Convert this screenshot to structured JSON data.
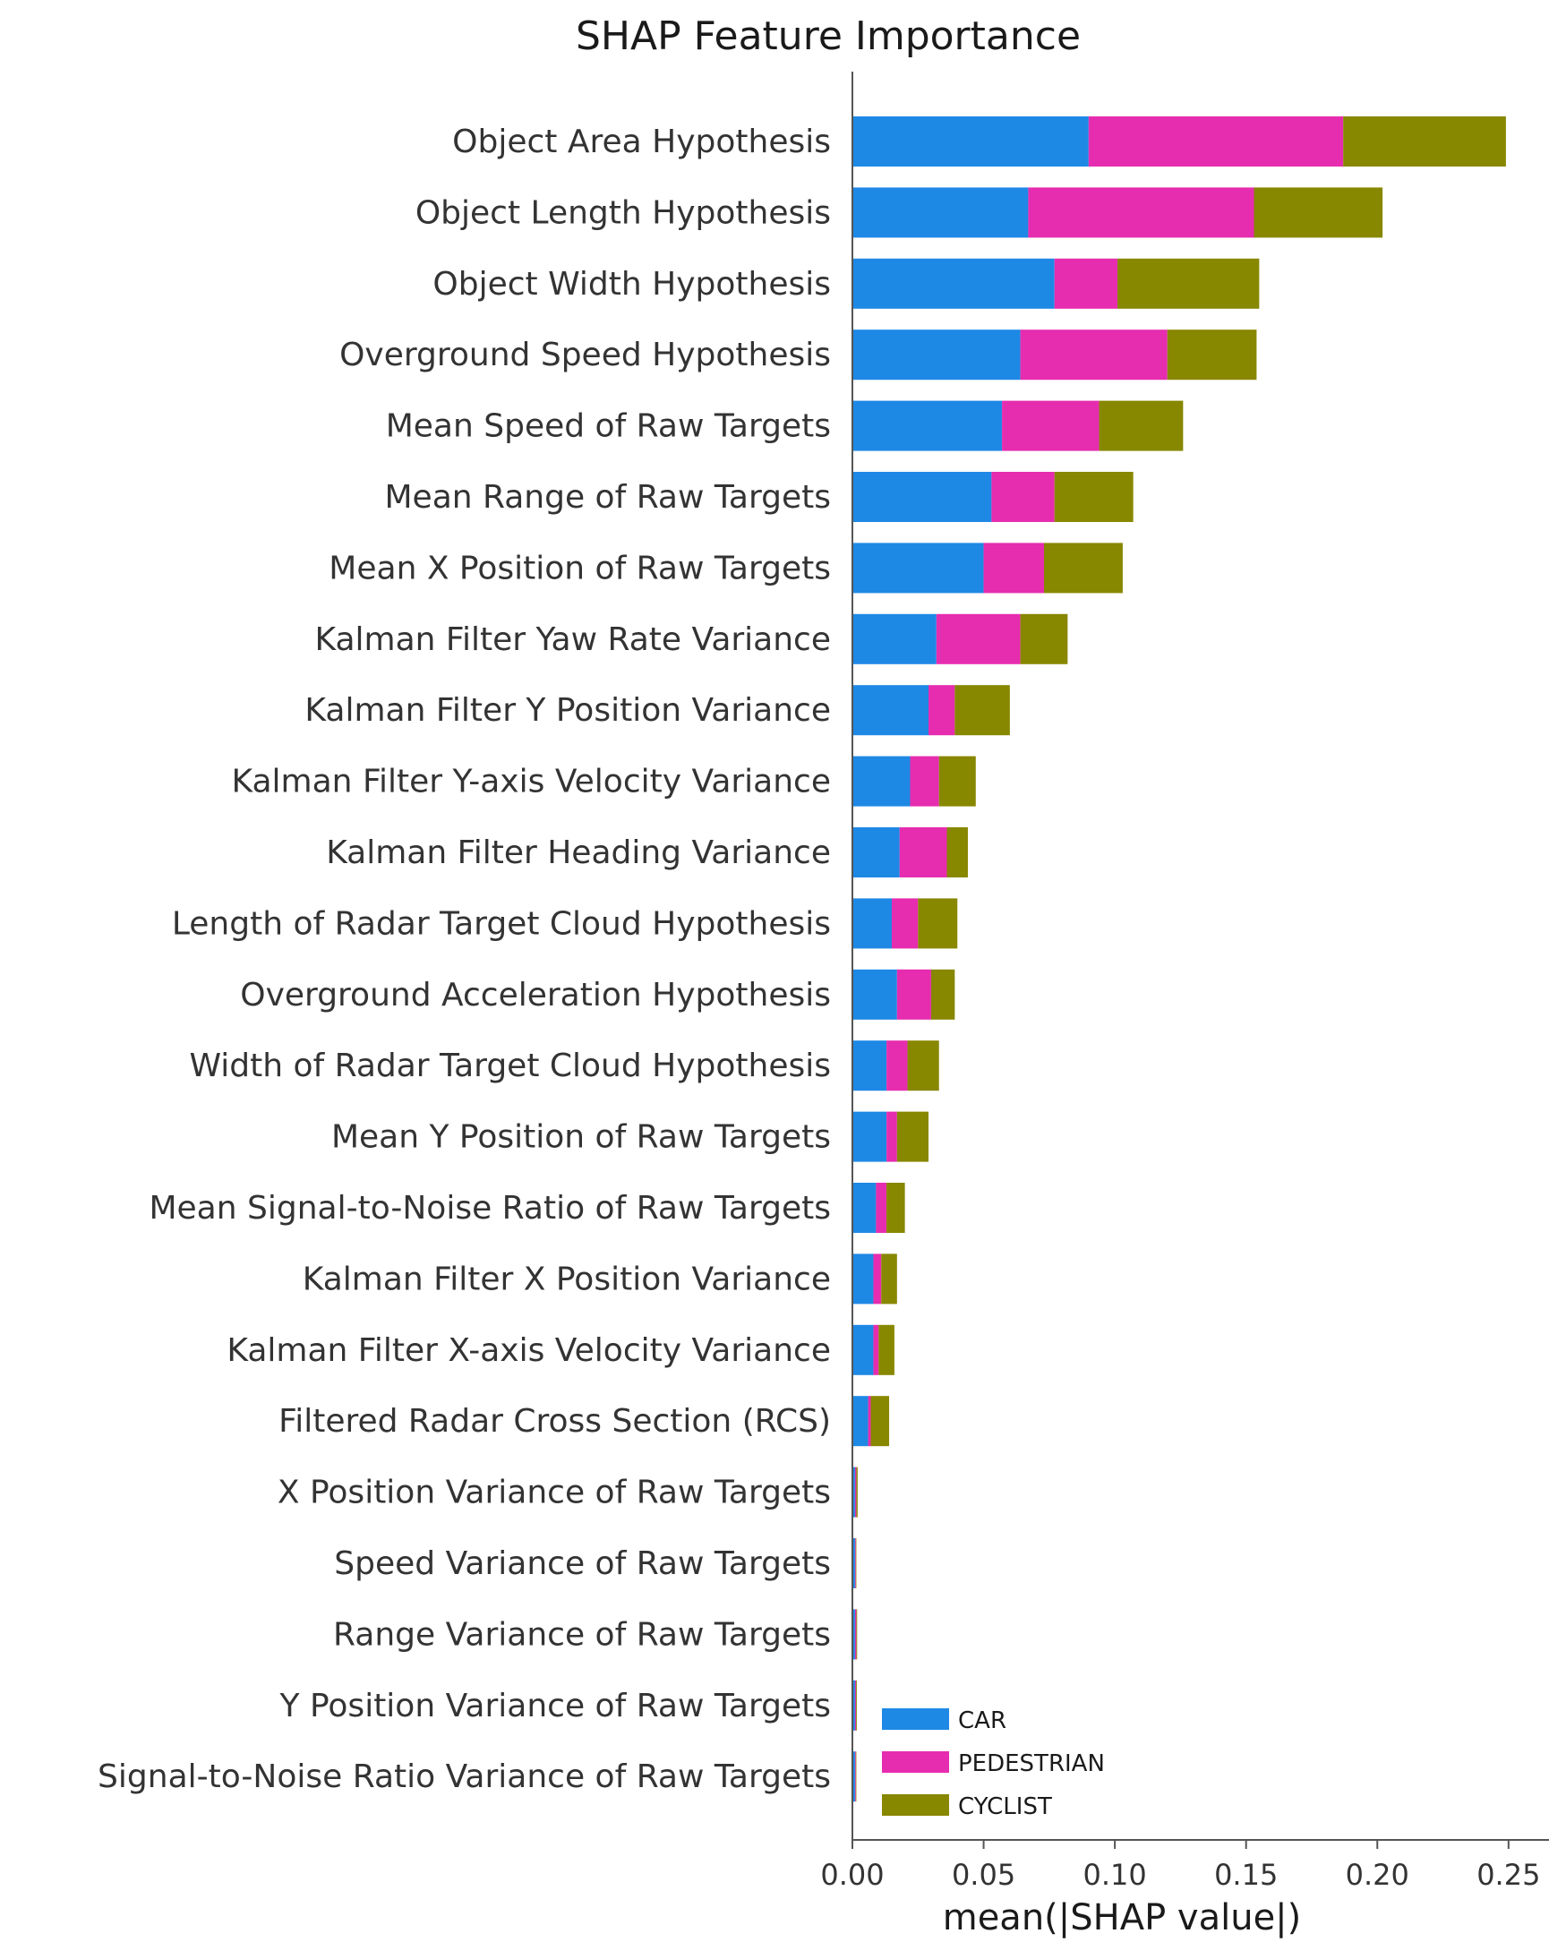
{
  "chart_data": {
    "type": "bar",
    "orientation": "horizontal",
    "stacked": true,
    "title": "SHAP Feature Importance",
    "xlabel": "mean(|SHAP value|)",
    "ylabel": "",
    "xlim": [
      0,
      0.262
    ],
    "xticks": [
      "0.00",
      "0.05",
      "0.10",
      "0.15",
      "0.20",
      "0.25"
    ],
    "xtick_values": [
      0,
      0.05,
      0.1,
      0.15,
      0.2,
      0.25
    ],
    "grid": false,
    "legend_position": "bottom-right",
    "categories": [
      "Object Area Hypothesis",
      "Object Length Hypothesis",
      "Object Width Hypothesis",
      "Overground Speed Hypothesis",
      "Mean Speed of Raw Targets",
      "Mean Range of Raw Targets",
      "Mean X Position of Raw Targets",
      "Kalman Filter Yaw Rate Variance",
      "Kalman Filter Y Position Variance",
      "Kalman Filter Y-axis Velocity Variance",
      "Kalman Filter Heading Variance",
      "Length of Radar Target Cloud Hypothesis",
      "Overground Acceleration Hypothesis",
      "Width of Radar Target Cloud Hypothesis",
      "Mean Y Position of Raw Targets",
      "Mean Signal-to-Noise Ratio of Raw Targets",
      "Kalman Filter X Position Variance",
      "Kalman Filter X-axis Velocity Variance",
      "Filtered Radar Cross Section (RCS)",
      "X Position Variance of Raw Targets",
      "Speed Variance of Raw Targets",
      "Range Variance of Raw Targets",
      "Y Position Variance of Raw Targets",
      "Signal-to-Noise Ratio Variance of Raw Targets"
    ],
    "series": [
      {
        "name": "CAR",
        "color": "#1E88E5",
        "values": [
          0.09,
          0.067,
          0.077,
          0.064,
          0.057,
          0.053,
          0.05,
          0.032,
          0.029,
          0.022,
          0.018,
          0.015,
          0.017,
          0.013,
          0.013,
          0.009,
          0.008,
          0.008,
          0.006,
          0.001,
          0.001,
          0.001,
          0.001,
          0.001
        ]
      },
      {
        "name": "PEDESTRIAN",
        "color": "#E62CAF",
        "values": [
          0.097,
          0.086,
          0.024,
          0.056,
          0.037,
          0.024,
          0.023,
          0.032,
          0.01,
          0.011,
          0.018,
          0.01,
          0.013,
          0.008,
          0.004,
          0.004,
          0.003,
          0.002,
          0.001,
          0.0005,
          0.0003,
          0.0005,
          0.0004,
          0.0003
        ]
      },
      {
        "name": "CYCLIST",
        "color": "#878700",
        "values": [
          0.062,
          0.049,
          0.054,
          0.034,
          0.032,
          0.03,
          0.03,
          0.018,
          0.021,
          0.014,
          0.008,
          0.015,
          0.009,
          0.012,
          0.012,
          0.007,
          0.006,
          0.006,
          0.007,
          0.0005,
          0.0002,
          0.0003,
          0.0003,
          0.0002
        ]
      }
    ]
  }
}
